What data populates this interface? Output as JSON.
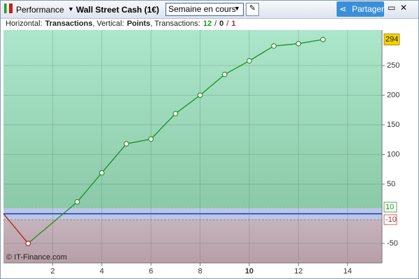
{
  "toolbar": {
    "app": "Performance",
    "instrument": "Wall Street Cash (1€)",
    "period": "Semaine en cours",
    "share": "Partager"
  },
  "info": {
    "h_label": "Horizontal:",
    "h_value": "Transactions",
    "v_label": ", Vertical:",
    "v_value": "Points",
    "t_label": ", Transactions:",
    "wins": "12",
    "sep1": "/",
    "even": "0",
    "sep2": "/",
    "losses": "1"
  },
  "copyright": "© IT-Finance.com",
  "chart_data": {
    "type": "line",
    "series": [
      {
        "color": "#b02020",
        "x": [
          0,
          1
        ],
        "values": [
          0,
          -50
        ]
      },
      {
        "color": "#1e8c1e",
        "x": [
          1,
          3,
          4,
          5,
          6,
          7,
          8,
          9,
          10,
          11,
          12,
          13
        ],
        "values": [
          -50,
          20,
          69,
          118,
          126,
          169,
          200,
          235,
          258,
          283,
          287,
          294
        ]
      }
    ],
    "last_value_label": "294",
    "levels": [
      10,
      -10
    ],
    "xlim": [
      0,
      15.4
    ],
    "ylim": [
      -83,
      310
    ],
    "xticks": [
      2,
      4,
      6,
      8,
      10,
      12,
      14
    ],
    "yticks": [
      -50,
      50,
      100,
      150,
      200,
      250
    ],
    "grid": true
  }
}
